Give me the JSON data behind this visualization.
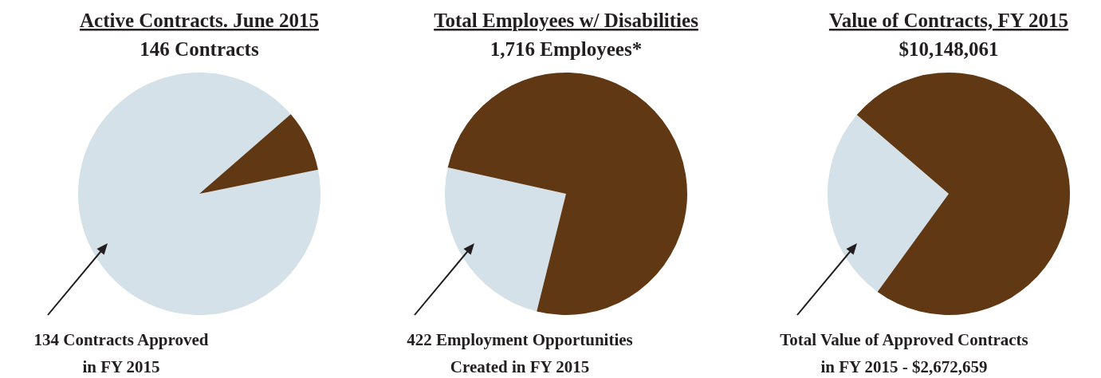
{
  "chart_data": [
    {
      "type": "pie",
      "title": "Active Contracts. June 2015",
      "subtitle": "146 Contracts",
      "categories": [
        null,
        null
      ],
      "values": [
        91.8,
        8.2
      ],
      "colors": [
        "#d4e1e8",
        "#603813"
      ],
      "annotations": [
        "134 Contracts Approved\nin FY 2015"
      ]
    },
    {
      "type": "pie",
      "title": "Total Employees w/ Disabilities",
      "subtitle": "1,716 Employees*",
      "categories": [
        null,
        null
      ],
      "values": [
        24.6,
        75.4
      ],
      "colors": [
        "#d4e1e8",
        "#603813"
      ],
      "annotations": [
        "422 Employment Opportunities\nCreated in FY 2015"
      ]
    },
    {
      "type": "pie",
      "title": "Value of Contracts, FY 2015",
      "subtitle": "$10,148,061",
      "categories": [
        null,
        null
      ],
      "values": [
        26.3,
        73.7
      ],
      "colors": [
        "#d4e1e8",
        "#603813"
      ],
      "annotations": [
        "Total Value of Approved Contracts\nin FY 2015 - $2,672,659"
      ]
    }
  ]
}
